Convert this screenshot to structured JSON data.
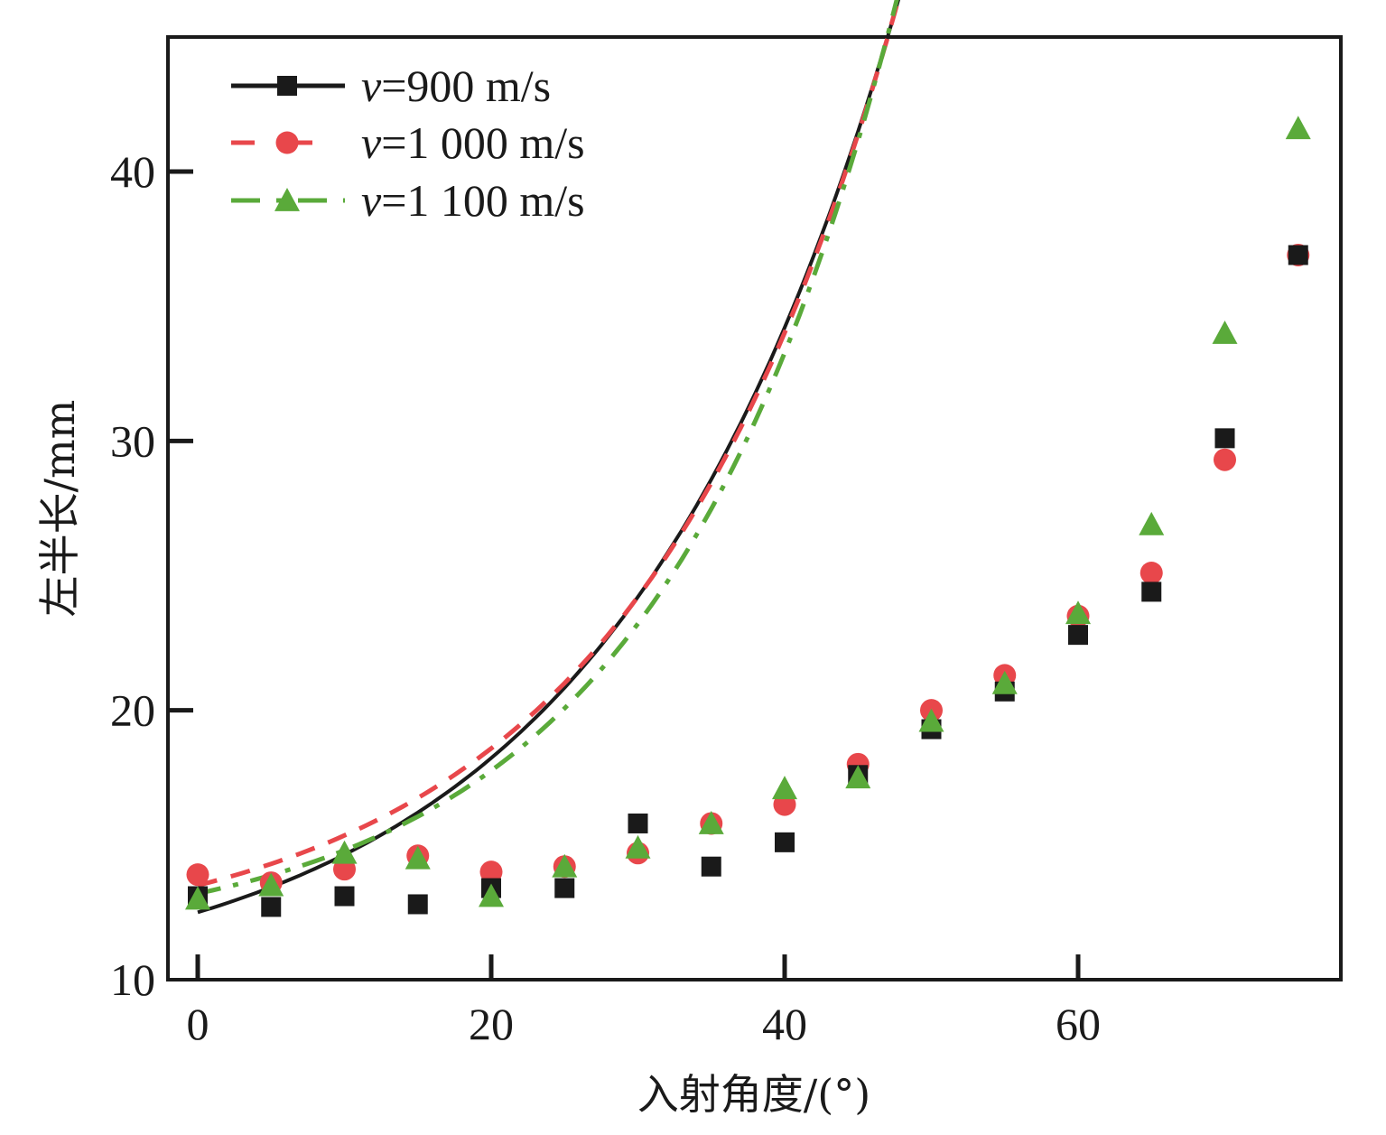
{
  "chart_data": {
    "type": "scatter",
    "title": "",
    "xlabel": "入射角度/(°)",
    "ylabel": "左半长/mm",
    "xlim": [
      -2,
      78
    ],
    "ylim": [
      10,
      45
    ],
    "xticks": [
      0,
      20,
      40,
      60
    ],
    "xtick_labels": [
      "0",
      "20",
      "40",
      "60"
    ],
    "yticks": [
      10,
      20,
      30,
      40
    ],
    "ytick_labels": [
      "10",
      "20",
      "30",
      "40"
    ],
    "grid": false,
    "legend_position": "top-left",
    "x": [
      0,
      5,
      10,
      15,
      20,
      25,
      30,
      35,
      40,
      45,
      50,
      55,
      60,
      65,
      70,
      75
    ],
    "series": [
      {
        "name": "v=900 m/s",
        "legend_var": "v",
        "legend_rest": "=900 m/s",
        "color": "#1a1a1a",
        "marker": "square",
        "line_style": "solid",
        "values": [
          13.1,
          12.7,
          13.1,
          12.8,
          13.4,
          13.4,
          15.8,
          14.2,
          15.1,
          17.6,
          19.3,
          20.7,
          22.8,
          24.4,
          30.1,
          36.9
        ],
        "fit": {
          "a": 9.3,
          "b": 3.2,
          "c": 0.0513
        }
      },
      {
        "name": "v=1 000 m/s",
        "legend_var": "v",
        "legend_rest": "=1 000 m/s",
        "color": "#e8474b",
        "marker": "circle",
        "line_style": "dashed",
        "values": [
          13.9,
          13.6,
          14.1,
          14.6,
          14.0,
          14.2,
          14.7,
          15.8,
          16.5,
          18.0,
          20.0,
          21.3,
          23.5,
          25.1,
          29.3,
          36.9
        ],
        "fit": {
          "a": 11.0,
          "b": 2.5,
          "c": 0.0555
        }
      },
      {
        "name": "v=1 100 m/s",
        "legend_var": "v",
        "legend_rest": "=1 100 m/s",
        "color": "#5aaa3a",
        "marker": "triangle",
        "line_style": "dashdot",
        "values": [
          13.0,
          13.5,
          14.7,
          14.5,
          13.1,
          14.2,
          14.9,
          15.8,
          17.1,
          17.5,
          19.6,
          21.0,
          23.6,
          26.9,
          34.0,
          41.6
        ],
        "fit": {
          "a": 11.3,
          "b": 1.9,
          "c": 0.0612
        }
      }
    ]
  }
}
